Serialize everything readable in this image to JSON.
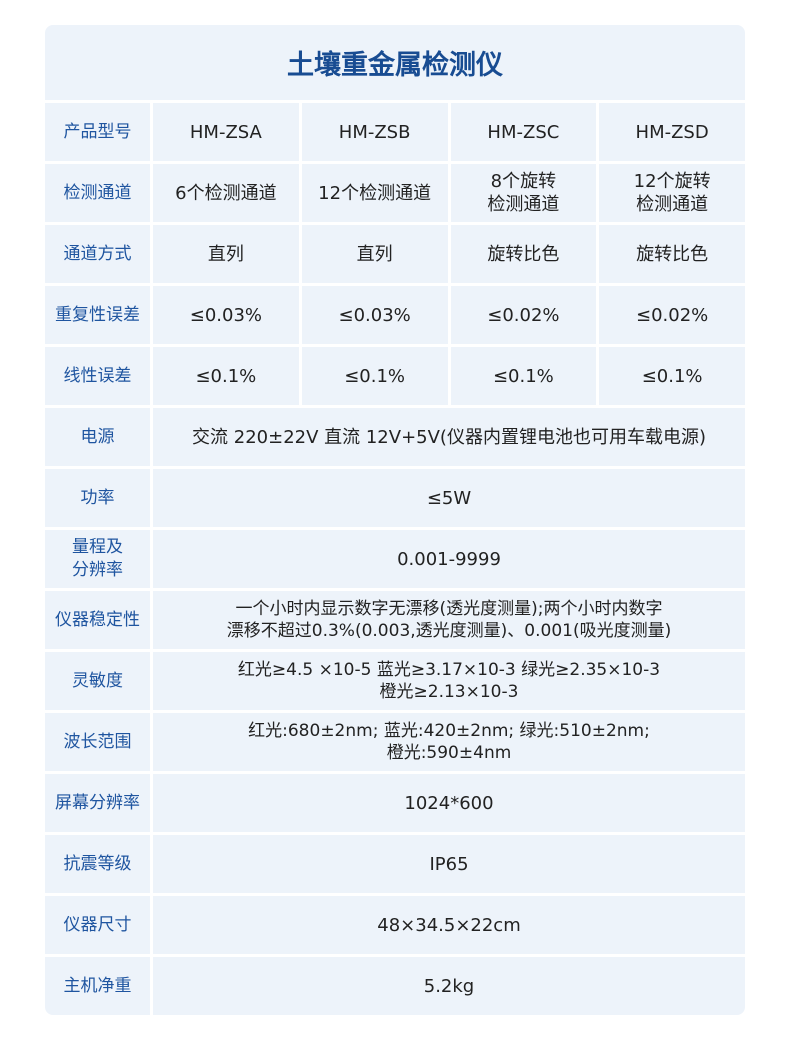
{
  "title": "土壤重金属检测仪",
  "rows4": [
    {
      "label": "产品型号",
      "values": [
        "HM-ZSA",
        "HM-ZSB",
        "HM-ZSC",
        "HM-ZSD"
      ]
    },
    {
      "label": "检测通道",
      "values": [
        "6个检测通道",
        "12个检测通道",
        "8个旋转\n检测通道",
        "12个旋转\n检测通道"
      ]
    },
    {
      "label": "通道方式",
      "values": [
        "直列",
        "直列",
        "旋转比色",
        "旋转比色"
      ]
    },
    {
      "label": "重复性误差",
      "values": [
        "≤0.03%",
        "≤0.03%",
        "≤0.02%",
        "≤0.02%"
      ]
    },
    {
      "label": "线性误差",
      "values": [
        "≤0.1%",
        "≤0.1%",
        "≤0.1%",
        "≤0.1%"
      ]
    }
  ],
  "rows1": [
    {
      "label": "电源",
      "value": "交流 220±22V  直流 12V+5V(仪器内置锂电池也可用车载电源)"
    },
    {
      "label": "功率",
      "value": "≤5W"
    },
    {
      "label": "量程及\n分辨率",
      "value": "0.001-9999"
    },
    {
      "label": "仪器稳定性",
      "value": "一个小时内显示数字无漂移(透光度测量);两个小时内数字\n漂移不超过0.3%(0.003,透光度测量)、0.001(吸光度测量)"
    },
    {
      "label": "灵敏度",
      "value": "红光≥4.5 ×10-5  蓝光≥3.17×10-3  绿光≥2.35×10-3\n橙光≥2.13×10-3"
    },
    {
      "label": "波长范围",
      "value": "红光:680±2nm; 蓝光:420±2nm; 绿光:510±2nm;\n橙光:590±4nm"
    },
    {
      "label": "屏幕分辨率",
      "value": "1024*600"
    },
    {
      "label": "抗震等级",
      "value": "IP65"
    },
    {
      "label": "仪器尺寸",
      "value": "48×34.5×22cm"
    },
    {
      "label": "主机净重",
      "value": "5.2kg"
    }
  ]
}
